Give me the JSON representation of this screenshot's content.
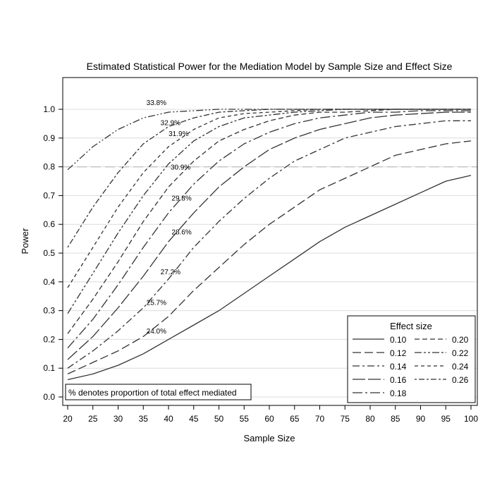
{
  "chart_data": {
    "type": "line",
    "title": "Estimated Statistical Power for the Mediation Model by Sample Size and Effect Size",
    "xlabel": "Sample Size",
    "ylabel": "Power",
    "xlim": [
      20,
      100
    ],
    "ylim": [
      0,
      1.0
    ],
    "xticks": [
      "20",
      "25",
      "30",
      "35",
      "40",
      "45",
      "50",
      "55",
      "60",
      "65",
      "70",
      "75",
      "80",
      "85",
      "90",
      "95",
      "100"
    ],
    "yticks": [
      "0.0",
      "0.1",
      "0.2",
      "0.3",
      "0.4",
      "0.5",
      "0.6",
      "0.7",
      "0.8",
      "0.9",
      "1.0"
    ],
    "grid": "horizontal",
    "reference_line": {
      "y": 0.8
    },
    "legend_title": "Effect size",
    "legend_position": "bottom-right",
    "footnote": "% denotes proportion of total effect mediated",
    "x": [
      20,
      25,
      30,
      35,
      40,
      45,
      50,
      55,
      60,
      65,
      70,
      75,
      80,
      85,
      90,
      95,
      100
    ],
    "series": [
      {
        "name": "0.10",
        "dash": "solid",
        "values": [
          0.06,
          0.08,
          0.11,
          0.15,
          0.2,
          0.25,
          0.3,
          0.36,
          0.42,
          0.48,
          0.54,
          0.59,
          0.63,
          0.67,
          0.71,
          0.75,
          0.77
        ]
      },
      {
        "name": "0.12",
        "dash": "long",
        "values": [
          0.08,
          0.12,
          0.16,
          0.21,
          0.28,
          0.37,
          0.45,
          0.53,
          0.6,
          0.66,
          0.72,
          0.76,
          0.8,
          0.84,
          0.86,
          0.88,
          0.89
        ]
      },
      {
        "name": "0.14",
        "dash": "dashdot",
        "values": [
          0.1,
          0.16,
          0.23,
          0.31,
          0.41,
          0.52,
          0.61,
          0.69,
          0.76,
          0.82,
          0.86,
          0.9,
          0.92,
          0.94,
          0.95,
          0.96,
          0.96
        ]
      },
      {
        "name": "0.16",
        "dash": "longsolid",
        "values": [
          0.13,
          0.21,
          0.31,
          0.42,
          0.54,
          0.64,
          0.73,
          0.8,
          0.86,
          0.9,
          0.93,
          0.95,
          0.97,
          0.98,
          0.985,
          0.99,
          0.99
        ]
      },
      {
        "name": "0.18",
        "dash": "longdashdot",
        "values": [
          0.17,
          0.27,
          0.39,
          0.52,
          0.64,
          0.74,
          0.82,
          0.88,
          0.92,
          0.95,
          0.97,
          0.98,
          0.99,
          0.99,
          0.995,
          0.995,
          0.995
        ]
      },
      {
        "name": "0.20",
        "dash": "medium",
        "values": [
          0.22,
          0.34,
          0.47,
          0.61,
          0.73,
          0.82,
          0.89,
          0.93,
          0.96,
          0.98,
          0.99,
          0.99,
          0.995,
          1.0,
          1.0,
          1.0,
          1.0
        ]
      },
      {
        "name": "0.22",
        "dash": "dashdotdot",
        "values": [
          0.29,
          0.43,
          0.57,
          0.7,
          0.81,
          0.89,
          0.94,
          0.97,
          0.98,
          0.99,
          0.995,
          1.0,
          1.0,
          1.0,
          1.0,
          1.0,
          1.0
        ]
      },
      {
        "name": "0.24",
        "dash": "shortdash",
        "values": [
          0.38,
          0.52,
          0.66,
          0.78,
          0.87,
          0.93,
          0.97,
          0.985,
          0.99,
          0.995,
          1.0,
          1.0,
          1.0,
          1.0,
          1.0,
          1.0,
          1.0
        ]
      },
      {
        "name": "0.26",
        "dash": "dotdash",
        "values": [
          0.52,
          0.66,
          0.78,
          0.88,
          0.94,
          0.97,
          0.99,
          0.995,
          1.0,
          1.0,
          1.0,
          1.0,
          1.0,
          1.0,
          1.0,
          1.0,
          1.0
        ]
      },
      {
        "name": "",
        "dash": "longdotdot",
        "values": [
          0.79,
          0.87,
          0.93,
          0.97,
          0.99,
          0.995,
          1.0,
          1.0,
          1.0,
          1.0,
          1.0,
          1.0,
          1.0,
          1.0,
          1.0,
          1.0,
          1.0
        ]
      }
    ],
    "annotations": [
      {
        "text": "33.8%",
        "x": 37.6,
        "y": 1.015
      },
      {
        "text": "32.9%",
        "x": 40.4,
        "y": 0.945
      },
      {
        "text": "31.9%",
        "x": 42.0,
        "y": 0.907
      },
      {
        "text": "30.9%",
        "x": 42.4,
        "y": 0.79
      },
      {
        "text": "29.8%",
        "x": 42.6,
        "y": 0.683
      },
      {
        "text": "28.6%",
        "x": 42.6,
        "y": 0.565
      },
      {
        "text": "27.2%",
        "x": 40.4,
        "y": 0.427
      },
      {
        "text": "25.7%",
        "x": 37.6,
        "y": 0.32
      },
      {
        "text": "24.0%",
        "x": 37.6,
        "y": 0.22
      }
    ]
  }
}
